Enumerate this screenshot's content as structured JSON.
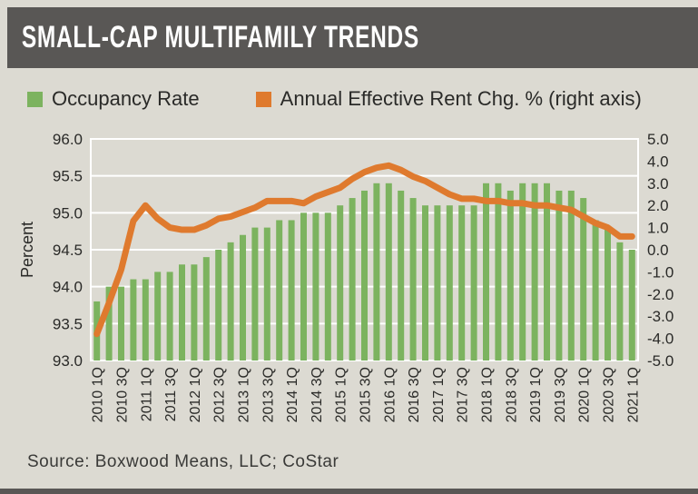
{
  "header": {
    "title": "SMALL-CAP MULTIFAMILY TRENDS"
  },
  "legend": {
    "items": [
      {
        "label": "Occupancy Rate",
        "color": "#7cb35f"
      },
      {
        "label": "Annual Effective Rent Chg. % (right axis)",
        "color": "#df7a2e"
      }
    ]
  },
  "source": "Source: Boxwood Means, LLC; CoStar",
  "colors": {
    "bar_green": "#7cb35f",
    "line_orange": "#df7a2e",
    "header_gray": "#595755",
    "background": "#dcdad2",
    "gridline": "#ffffff",
    "text_dark": "#2a2a28"
  },
  "chart_data": {
    "type": "bar",
    "note": "combo bar+line chart, dual axes",
    "categories": [
      "2010 1Q",
      "2010 2Q",
      "2010 3Q",
      "2010 4Q",
      "2011 1Q",
      "2011 2Q",
      "2011 3Q",
      "2011 4Q",
      "2012 1Q",
      "2012 2Q",
      "2012 3Q",
      "2012 4Q",
      "2013 1Q",
      "2013 2Q",
      "2013 3Q",
      "2013 4Q",
      "2014 1Q",
      "2014 2Q",
      "2014 3Q",
      "2014 4Q",
      "2015 1Q",
      "2015 2Q",
      "2015 3Q",
      "2015 4Q",
      "2016 1Q",
      "2016 2Q",
      "2016 3Q",
      "2016 4Q",
      "2017 1Q",
      "2017 2Q",
      "2017 3Q",
      "2017 4Q",
      "2018 1Q",
      "2018 2Q",
      "2018 3Q",
      "2018 4Q",
      "2019 1Q",
      "2019 2Q",
      "2019 3Q",
      "2019 4Q",
      "2020 1Q",
      "2020 2Q",
      "2020 3Q",
      "2020 4Q",
      "2021 1Q"
    ],
    "x_tick_every": 2,
    "series": [
      {
        "name": "Occupancy Rate",
        "type": "bar",
        "axis": "left",
        "color": "#7cb35f",
        "values": [
          93.8,
          94.0,
          94.0,
          94.1,
          94.1,
          94.2,
          94.2,
          94.3,
          94.3,
          94.4,
          94.5,
          94.6,
          94.7,
          94.8,
          94.8,
          94.9,
          94.9,
          95.0,
          95.0,
          95.0,
          95.1,
          95.2,
          95.3,
          95.4,
          95.4,
          95.3,
          95.2,
          95.1,
          95.1,
          95.1,
          95.1,
          95.1,
          95.4,
          95.4,
          95.3,
          95.4,
          95.4,
          95.4,
          95.3,
          95.3,
          95.2,
          94.9,
          94.8,
          94.6,
          94.5
        ]
      },
      {
        "name": "Annual Effective Rent Chg. % (right axis)",
        "type": "line",
        "axis": "right",
        "color": "#df7a2e",
        "values": [
          -3.8,
          -2.4,
          -0.9,
          1.3,
          2.0,
          1.4,
          1.0,
          0.9,
          0.9,
          1.1,
          1.4,
          1.5,
          1.7,
          1.9,
          2.2,
          2.2,
          2.2,
          2.1,
          2.4,
          2.6,
          2.8,
          3.2,
          3.5,
          3.7,
          3.8,
          3.6,
          3.3,
          3.1,
          2.8,
          2.5,
          2.3,
          2.3,
          2.2,
          2.2,
          2.1,
          2.1,
          2.0,
          2.0,
          1.9,
          1.8,
          1.5,
          1.2,
          1.0,
          0.6,
          0.6
        ]
      }
    ],
    "left_axis": {
      "label": "Percent",
      "min": 93.0,
      "max": 96.0,
      "step": 0.5,
      "ticks": [
        "96.0",
        "95.5",
        "95.0",
        "94.5",
        "94.0",
        "93.5",
        "93.0"
      ]
    },
    "right_axis": {
      "min": -5.0,
      "max": 5.0,
      "step": 1.0,
      "ticks": [
        "5.0",
        "4.0",
        "3.0",
        "2.0",
        "1.0",
        "0.0",
        "-1.0",
        "-2.0",
        "-3.0",
        "-4.0",
        "-5.0"
      ]
    },
    "grid": true,
    "legend_position": "top"
  }
}
